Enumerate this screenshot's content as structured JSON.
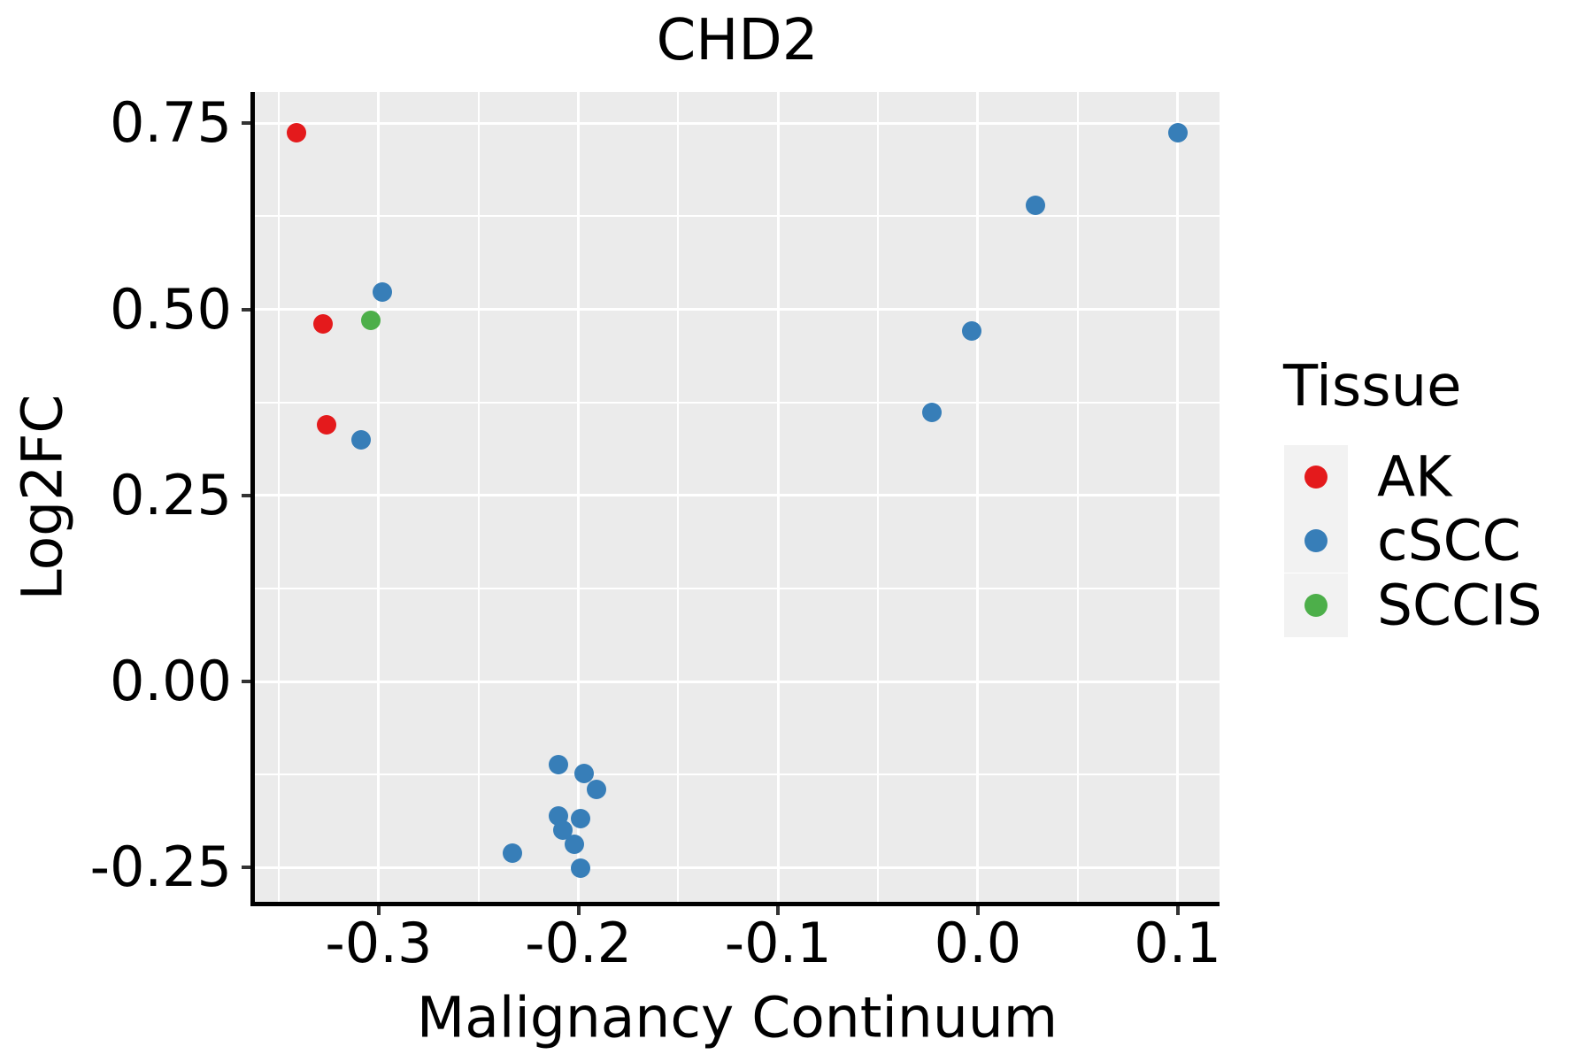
{
  "chart_data": {
    "type": "scatter",
    "title": "CHD2",
    "xlabel": "Malignancy Continuum",
    "ylabel": "Log2FC",
    "xlim": [
      -0.362,
      0.121
    ],
    "ylim": [
      -0.296,
      0.792
    ],
    "grid": true,
    "legend_position": "right",
    "panel_bg": "#EBEBEB",
    "grid_color": "#FFFFFF",
    "legend_key_bg": "#F2F2F2",
    "axis_color": "#000000",
    "text_color": "#000000",
    "x_ticks": [
      {
        "value": -0.3,
        "label": "-0.3"
      },
      {
        "value": -0.2,
        "label": "-0.2"
      },
      {
        "value": -0.1,
        "label": "-0.1"
      },
      {
        "value": 0.0,
        "label": "0.0"
      },
      {
        "value": 0.1,
        "label": "0.1"
      }
    ],
    "y_ticks": [
      {
        "value": 0.75,
        "label": "0.75"
      },
      {
        "value": 0.5,
        "label": "0.50"
      },
      {
        "value": 0.25,
        "label": "0.25"
      },
      {
        "value": 0.0,
        "label": "0.00"
      },
      {
        "value": -0.25,
        "label": "-0.25"
      }
    ],
    "x_minor_ticks": [
      -0.35,
      -0.25,
      -0.15,
      -0.05,
      0.05
    ],
    "y_minor_ticks": [
      0.625,
      0.375,
      0.125,
      -0.125
    ],
    "legend": {
      "title": "Tissue",
      "entries": [
        {
          "label": "AK",
          "color": "#E41A1C"
        },
        {
          "label": "cSCC",
          "color": "#377EB8"
        },
        {
          "label": "SCCIS",
          "color": "#4DAF4A"
        }
      ]
    },
    "series": [
      {
        "name": "AK",
        "color": "#E41A1C",
        "points": [
          {
            "x": -0.341,
            "y": 0.737
          },
          {
            "x": -0.328,
            "y": 0.48
          },
          {
            "x": -0.326,
            "y": 0.345
          }
        ]
      },
      {
        "name": "cSCC",
        "color": "#377EB8",
        "points": [
          {
            "x": -0.298,
            "y": 0.523
          },
          {
            "x": -0.309,
            "y": 0.325
          },
          {
            "x": 0.1,
            "y": 0.737
          },
          {
            "x": 0.029,
            "y": 0.64
          },
          {
            "x": -0.003,
            "y": 0.471
          },
          {
            "x": -0.023,
            "y": 0.361
          },
          {
            "x": -0.21,
            "y": -0.112
          },
          {
            "x": -0.197,
            "y": -0.123
          },
          {
            "x": -0.191,
            "y": -0.145
          },
          {
            "x": -0.199,
            "y": -0.184
          },
          {
            "x": -0.21,
            "y": -0.181
          },
          {
            "x": -0.208,
            "y": -0.2
          },
          {
            "x": -0.202,
            "y": -0.219
          },
          {
            "x": -0.233,
            "y": -0.231
          },
          {
            "x": -0.199,
            "y": -0.251
          }
        ]
      },
      {
        "name": "SCCIS",
        "color": "#4DAF4A",
        "points": [
          {
            "x": -0.304,
            "y": 0.485
          }
        ]
      }
    ]
  }
}
